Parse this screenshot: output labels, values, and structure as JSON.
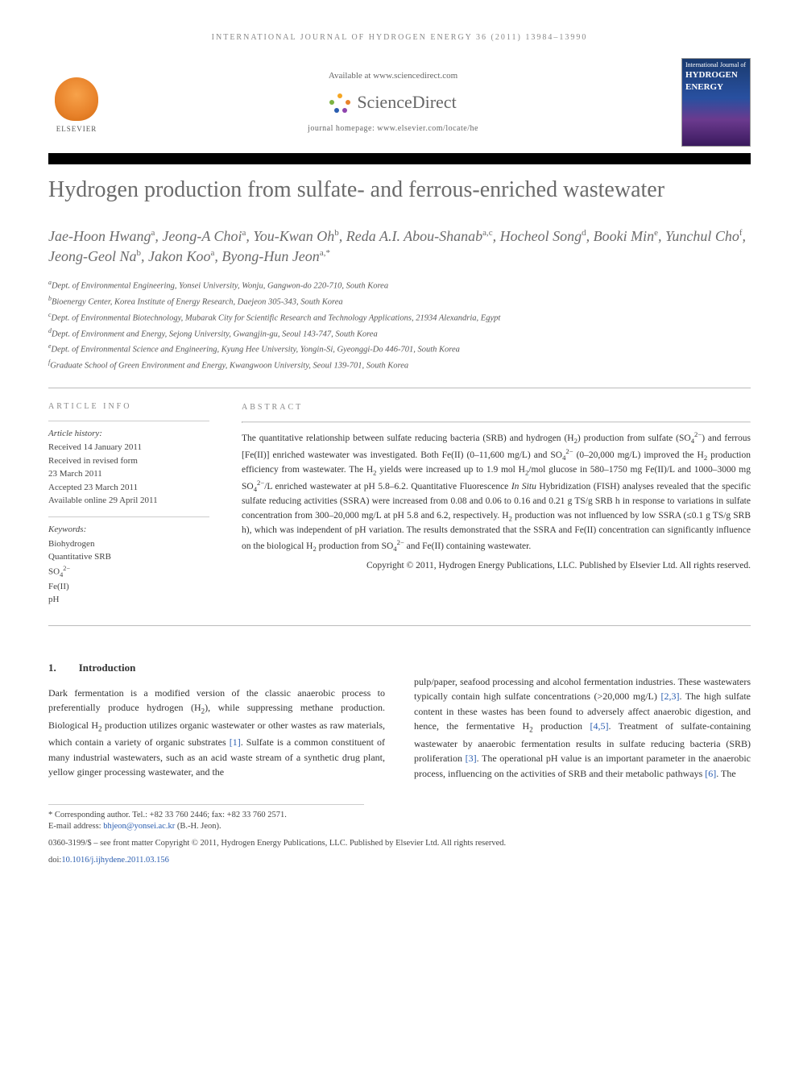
{
  "running_head": "INTERNATIONAL JOURNAL OF HYDROGEN ENERGY 36 (2011) 13984–13990",
  "banner": {
    "available_at": "Available at www.sciencedirect.com",
    "sd_name": "ScienceDirect",
    "journal_homepage": "journal homepage: www.elsevier.com/locate/he",
    "elsevier_word": "ELSEVIER",
    "cover_small": "International Journal of",
    "cover_big": "HYDROGEN ENERGY"
  },
  "title": "Hydrogen production from sulfate- and ferrous-enriched wastewater",
  "authors_html": "Jae-Hoon Hwang<sup>a</sup>, Jeong-A Choi<sup>a</sup>, You-Kwan Oh<sup>b</sup>, Reda A.I. Abou-Shanab<sup>a,c</sup>, Hocheol Song<sup>d</sup>, Booki Min<sup>e</sup>, Yunchul Cho<sup>f</sup>, Jeong-Geol Na<sup>b</sup>, Jakon Koo<sup>a</sup>, Byong-Hun Jeon<sup>a,*</sup>",
  "affiliations": [
    "<sup>a</sup>Dept. of Environmental Engineering, Yonsei University, Wonju, Gangwon-do 220-710, South Korea",
    "<sup>b</sup>Bioenergy Center, Korea Institute of Energy Research, Daejeon 305-343, South Korea",
    "<sup>c</sup>Dept. of Environmental Biotechnology, Mubarak City for Scientific Research and Technology Applications, 21934 Alexandria, Egypt",
    "<sup>d</sup>Dept. of Environment and Energy, Sejong University, Gwangjin-gu, Seoul 143-747, South Korea",
    "<sup>e</sup>Dept. of Environmental Science and Engineering, Kyung Hee University, Yongin-Si, Gyeonggi-Do 446-701, South Korea",
    "<sup>f</sup>Graduate School of Green Environment and Energy, Kwangwoon University, Seoul 139-701, South Korea"
  ],
  "article_info": {
    "head": "ARTICLE INFO",
    "history_label": "Article history:",
    "history": [
      "Received 14 January 2011",
      "Received in revised form",
      "23 March 2011",
      "Accepted 23 March 2011",
      "Available online 29 April 2011"
    ],
    "keywords_label": "Keywords:",
    "keywords": [
      "Biohydrogen",
      "Quantitative SRB",
      "SO<sub>4</sub><sup>2−</sup>",
      "Fe(II)",
      "pH"
    ]
  },
  "abstract": {
    "head": "ABSTRACT",
    "body_html": "The quantitative relationship between sulfate reducing bacteria (SRB) and hydrogen (H<sub>2</sub>) production from sulfate (SO<sub>4</sub><sup>2−</sup>) and ferrous [Fe(II)] enriched wastewater was investigated. Both Fe(II) (0–11,600 mg/L) and SO<sub>4</sub><sup>2−</sup> (0–20,000 mg/L) improved the H<sub>2</sub> production efficiency from wastewater. The H<sub>2</sub> yields were increased up to 1.9 mol H<sub>2</sub>/mol glucose in 580–1750 mg Fe(II)/L and 1000–3000 mg SO<sub>4</sub><sup>2−</sup>/L enriched wastewater at pH 5.8–6.2. Quantitative Fluorescence <i>In Situ</i> Hybridization (FISH) analyses revealed that the specific sulfate reducing activities (SSRA) were increased from 0.08 and 0.06 to 0.16 and 0.21 g TS/g SRB h in response to variations in sulfate concentration from 300–20,000 mg/L at pH 5.8 and 6.2, respectively. H<sub>2</sub> production was not influenced by low SSRA (≤0.1 g TS/g SRB h), which was independent of pH variation. The results demonstrated that the SSRA and Fe(II) concentration can significantly influence on the biological H<sub>2</sub> production from SO<sub>4</sub><sup>2−</sup> and Fe(II) containing wastewater.",
    "copyright": "Copyright © 2011, Hydrogen Energy Publications, LLC. Published by Elsevier Ltd. All rights reserved."
  },
  "section1": {
    "num": "1.",
    "title": "Introduction",
    "left_html": "Dark fermentation is a modified version of the classic anaerobic process to preferentially produce hydrogen (H<sub>2</sub>), while suppressing methane production. Biological H<sub>2</sub> production utilizes organic wastewater or other wastes as raw materials, which contain a variety of organic substrates <span class=\"link\">[1]</span>. Sulfate is a common constituent of many industrial wastewaters, such as an acid waste stream of a synthetic drug plant, yellow ginger processing wastewater, and the",
    "right_html": "pulp/paper, seafood processing and alcohol fermentation industries. These wastewaters typically contain high sulfate concentrations (>20,000 mg/L) <span class=\"link\">[2,3]</span>. The high sulfate content in these wastes has been found to adversely affect anaerobic digestion, and hence, the fermentative H<sub>2</sub> production <span class=\"link\">[4,5]</span>. Treatment of sulfate-containing wastewater by anaerobic fermentation results in sulfate reducing bacteria (SRB) proliferation <span class=\"link\">[3]</span>. The operational pH value is an important parameter in the anaerobic process, influencing on the activities of SRB and their metabolic pathways <span class=\"link\">[6]</span>. The"
  },
  "footnotes": {
    "corresponding": "* Corresponding author. Tel.: +82 33 760 2446; fax: +82 33 760 2571.",
    "email_label": "E-mail address:",
    "email": "bhjeon@yonsei.ac.kr",
    "email_suffix": "(B.-H. Jeon)."
  },
  "bottom": {
    "line1": "0360-3199/$ – see front matter Copyright © 2011, Hydrogen Energy Publications, LLC. Published by Elsevier Ltd. All rights reserved.",
    "doi_label": "doi:",
    "doi": "10.1016/j.ijhydene.2011.03.156"
  },
  "colors": {
    "title_gray": "#6b6b6b",
    "link_blue": "#2a5db0",
    "elsevier_orange": "#e8822a",
    "cover_top": "#1a3a6e",
    "cover_bottom": "#3a1a5e"
  }
}
